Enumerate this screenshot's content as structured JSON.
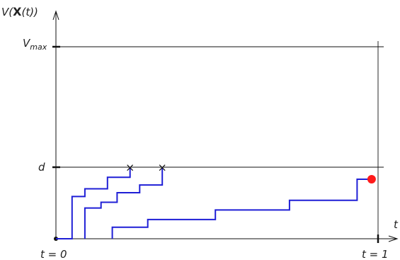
{
  "y_axis_label": {
    "prefix": "V(",
    "bold": "X",
    "suffix": "(t))"
  },
  "x_axis_label": "t",
  "y_ticks": {
    "vmax": {
      "main": "V",
      "sub": "max"
    },
    "d": "d"
  },
  "x_ticks": {
    "start": "t = 0",
    "end": "t = 1"
  },
  "chart_data": {
    "type": "line",
    "xlim": [
      0,
      1
    ],
    "ylim": [
      0,
      1
    ],
    "levels": {
      "d": 0.37,
      "vmax": 1.0
    },
    "series": [
      {
        "x": [
          0,
          0.05,
          0.05,
          0.09,
          0.09,
          0.16,
          0.16,
          0.23,
          0.23
        ],
        "y": [
          0,
          0,
          0.22,
          0.22,
          0.26,
          0.26,
          0.32,
          0.32,
          0.37
        ],
        "end": "cross"
      },
      {
        "x": [
          0.09,
          0.09,
          0.14,
          0.14,
          0.19,
          0.19,
          0.26,
          0.26,
          0.33,
          0.33
        ],
        "y": [
          0,
          0.16,
          0.16,
          0.19,
          0.19,
          0.24,
          0.24,
          0.28,
          0.28,
          0.37
        ],
        "end": "cross"
      },
      {
        "x": [
          0.175,
          0.175,
          0.285,
          0.285,
          0.495,
          0.495,
          0.725,
          0.725,
          0.935,
          0.935,
          0.98
        ],
        "y": [
          0,
          0.06,
          0.06,
          0.1,
          0.1,
          0.15,
          0.15,
          0.2,
          0.2,
          0.31,
          0.31
        ],
        "end": "dot"
      }
    ],
    "colors": {
      "path": "#1f1fd6",
      "dot": "#ff1a1a",
      "axis": "#111111"
    }
  }
}
